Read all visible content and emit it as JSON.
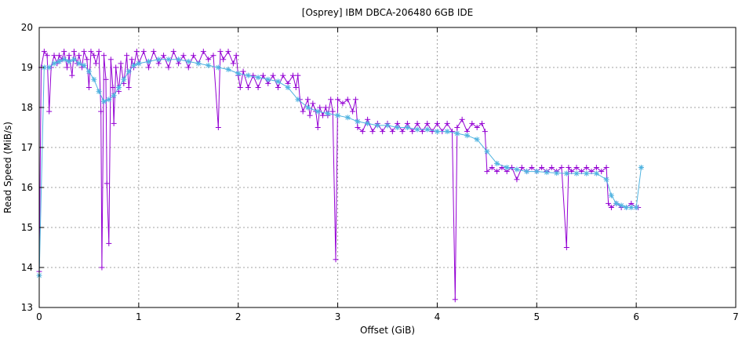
{
  "chart_data": {
    "type": "line",
    "title": "[Osprey] IBM DBCA-206480 6GB IDE",
    "xlabel": "Offset (GiB)",
    "ylabel": "Read Speed (MiB/s)",
    "xlim": [
      0,
      7
    ],
    "ylim": [
      13,
      20
    ],
    "xticks": [
      0,
      1,
      2,
      3,
      4,
      5,
      6,
      7
    ],
    "yticks": [
      13,
      14,
      15,
      16,
      17,
      18,
      19,
      20
    ],
    "grid": true,
    "legend": "none",
    "colors": {
      "raw": "#9400d3",
      "smooth": "#4fb3e0"
    },
    "series": [
      {
        "style": "line+plus",
        "points": [
          [
            0.0,
            13.9
          ],
          [
            0.02,
            19.0
          ],
          [
            0.05,
            19.4
          ],
          [
            0.08,
            19.3
          ],
          [
            0.1,
            17.9
          ],
          [
            0.12,
            19.0
          ],
          [
            0.15,
            19.3
          ],
          [
            0.18,
            19.1
          ],
          [
            0.2,
            19.3
          ],
          [
            0.23,
            19.2
          ],
          [
            0.25,
            19.4
          ],
          [
            0.28,
            19.0
          ],
          [
            0.3,
            19.3
          ],
          [
            0.33,
            18.8
          ],
          [
            0.35,
            19.4
          ],
          [
            0.38,
            19.1
          ],
          [
            0.4,
            19.3
          ],
          [
            0.43,
            19.0
          ],
          [
            0.45,
            19.4
          ],
          [
            0.48,
            19.2
          ],
          [
            0.5,
            18.5
          ],
          [
            0.52,
            19.4
          ],
          [
            0.55,
            19.3
          ],
          [
            0.57,
            19.1
          ],
          [
            0.6,
            19.4
          ],
          [
            0.62,
            17.9
          ],
          [
            0.63,
            14.0
          ],
          [
            0.65,
            19.3
          ],
          [
            0.67,
            18.7
          ],
          [
            0.68,
            16.1
          ],
          [
            0.7,
            14.6
          ],
          [
            0.72,
            19.2
          ],
          [
            0.74,
            18.5
          ],
          [
            0.75,
            17.6
          ],
          [
            0.77,
            19.0
          ],
          [
            0.8,
            18.4
          ],
          [
            0.82,
            19.1
          ],
          [
            0.85,
            18.6
          ],
          [
            0.88,
            19.3
          ],
          [
            0.9,
            18.5
          ],
          [
            0.93,
            19.2
          ],
          [
            0.95,
            19.0
          ],
          [
            0.98,
            19.4
          ],
          [
            1.0,
            19.1
          ],
          [
            1.05,
            19.4
          ],
          [
            1.1,
            19.0
          ],
          [
            1.15,
            19.4
          ],
          [
            1.2,
            19.1
          ],
          [
            1.25,
            19.3
          ],
          [
            1.3,
            19.0
          ],
          [
            1.35,
            19.4
          ],
          [
            1.4,
            19.1
          ],
          [
            1.45,
            19.3
          ],
          [
            1.5,
            19.0
          ],
          [
            1.55,
            19.3
          ],
          [
            1.6,
            19.1
          ],
          [
            1.65,
            19.4
          ],
          [
            1.7,
            19.2
          ],
          [
            1.75,
            19.3
          ],
          [
            1.8,
            17.5
          ],
          [
            1.82,
            19.4
          ],
          [
            1.85,
            19.2
          ],
          [
            1.9,
            19.4
          ],
          [
            1.95,
            19.1
          ],
          [
            1.98,
            19.3
          ],
          [
            2.0,
            18.8
          ],
          [
            2.02,
            18.5
          ],
          [
            2.05,
            18.9
          ],
          [
            2.1,
            18.5
          ],
          [
            2.15,
            18.8
          ],
          [
            2.2,
            18.5
          ],
          [
            2.25,
            18.8
          ],
          [
            2.3,
            18.6
          ],
          [
            2.35,
            18.8
          ],
          [
            2.4,
            18.5
          ],
          [
            2.45,
            18.8
          ],
          [
            2.5,
            18.6
          ],
          [
            2.55,
            18.8
          ],
          [
            2.58,
            18.5
          ],
          [
            2.6,
            18.8
          ],
          [
            2.62,
            18.2
          ],
          [
            2.65,
            17.9
          ],
          [
            2.7,
            18.2
          ],
          [
            2.72,
            17.8
          ],
          [
            2.75,
            18.1
          ],
          [
            2.78,
            17.9
          ],
          [
            2.8,
            17.5
          ],
          [
            2.82,
            18.0
          ],
          [
            2.85,
            17.8
          ],
          [
            2.88,
            18.0
          ],
          [
            2.9,
            17.8
          ],
          [
            2.93,
            18.2
          ],
          [
            2.95,
            17.9
          ],
          [
            2.98,
            14.2
          ],
          [
            3.0,
            18.2
          ],
          [
            3.05,
            18.1
          ],
          [
            3.1,
            18.2
          ],
          [
            3.15,
            17.9
          ],
          [
            3.18,
            18.2
          ],
          [
            3.2,
            17.5
          ],
          [
            3.25,
            17.4
          ],
          [
            3.3,
            17.7
          ],
          [
            3.35,
            17.4
          ],
          [
            3.4,
            17.6
          ],
          [
            3.45,
            17.4
          ],
          [
            3.5,
            17.6
          ],
          [
            3.55,
            17.4
          ],
          [
            3.6,
            17.6
          ],
          [
            3.65,
            17.4
          ],
          [
            3.7,
            17.6
          ],
          [
            3.75,
            17.4
          ],
          [
            3.8,
            17.6
          ],
          [
            3.85,
            17.4
          ],
          [
            3.9,
            17.6
          ],
          [
            3.95,
            17.4
          ],
          [
            4.0,
            17.6
          ],
          [
            4.05,
            17.4
          ],
          [
            4.1,
            17.6
          ],
          [
            4.15,
            17.4
          ],
          [
            4.18,
            13.2
          ],
          [
            4.2,
            17.5
          ],
          [
            4.25,
            17.7
          ],
          [
            4.3,
            17.4
          ],
          [
            4.35,
            17.6
          ],
          [
            4.4,
            17.5
          ],
          [
            4.45,
            17.6
          ],
          [
            4.48,
            17.4
          ],
          [
            4.5,
            16.4
          ],
          [
            4.55,
            16.5
          ],
          [
            4.6,
            16.4
          ],
          [
            4.65,
            16.5
          ],
          [
            4.7,
            16.4
          ],
          [
            4.75,
            16.5
          ],
          [
            4.8,
            16.2
          ],
          [
            4.85,
            16.5
          ],
          [
            4.9,
            16.4
          ],
          [
            4.95,
            16.5
          ],
          [
            5.0,
            16.4
          ],
          [
            5.05,
            16.5
          ],
          [
            5.1,
            16.4
          ],
          [
            5.15,
            16.5
          ],
          [
            5.2,
            16.4
          ],
          [
            5.25,
            16.5
          ],
          [
            5.3,
            14.5
          ],
          [
            5.32,
            16.5
          ],
          [
            5.35,
            16.4
          ],
          [
            5.4,
            16.5
          ],
          [
            5.45,
            16.4
          ],
          [
            5.5,
            16.5
          ],
          [
            5.55,
            16.4
          ],
          [
            5.6,
            16.5
          ],
          [
            5.65,
            16.4
          ],
          [
            5.7,
            16.5
          ],
          [
            5.72,
            15.6
          ],
          [
            5.75,
            15.5
          ],
          [
            5.8,
            15.6
          ],
          [
            5.85,
            15.5
          ],
          [
            5.9,
            15.5
          ],
          [
            5.95,
            15.6
          ],
          [
            6.0,
            15.5
          ],
          [
            6.02,
            15.5
          ]
        ]
      },
      {
        "style": "line+star",
        "points": [
          [
            0.0,
            13.8
          ],
          [
            0.05,
            19.0
          ],
          [
            0.1,
            19.0
          ],
          [
            0.15,
            19.1
          ],
          [
            0.2,
            19.15
          ],
          [
            0.25,
            19.2
          ],
          [
            0.3,
            19.15
          ],
          [
            0.35,
            19.2
          ],
          [
            0.4,
            19.1
          ],
          [
            0.45,
            19.05
          ],
          [
            0.5,
            18.9
          ],
          [
            0.55,
            18.7
          ],
          [
            0.6,
            18.4
          ],
          [
            0.65,
            18.15
          ],
          [
            0.7,
            18.2
          ],
          [
            0.75,
            18.3
          ],
          [
            0.8,
            18.5
          ],
          [
            0.85,
            18.7
          ],
          [
            0.9,
            18.9
          ],
          [
            0.95,
            19.05
          ],
          [
            1.0,
            19.1
          ],
          [
            1.1,
            19.15
          ],
          [
            1.2,
            19.2
          ],
          [
            1.3,
            19.2
          ],
          [
            1.4,
            19.2
          ],
          [
            1.5,
            19.15
          ],
          [
            1.6,
            19.1
          ],
          [
            1.7,
            19.05
          ],
          [
            1.8,
            19.0
          ],
          [
            1.9,
            18.95
          ],
          [
            2.0,
            18.85
          ],
          [
            2.1,
            18.8
          ],
          [
            2.2,
            18.75
          ],
          [
            2.3,
            18.7
          ],
          [
            2.4,
            18.65
          ],
          [
            2.5,
            18.5
          ],
          [
            2.6,
            18.2
          ],
          [
            2.7,
            18.0
          ],
          [
            2.8,
            17.9
          ],
          [
            2.9,
            17.85
          ],
          [
            3.0,
            17.8
          ],
          [
            3.1,
            17.75
          ],
          [
            3.2,
            17.65
          ],
          [
            3.3,
            17.6
          ],
          [
            3.4,
            17.55
          ],
          [
            3.5,
            17.55
          ],
          [
            3.6,
            17.5
          ],
          [
            3.7,
            17.5
          ],
          [
            3.8,
            17.45
          ],
          [
            3.9,
            17.45
          ],
          [
            4.0,
            17.4
          ],
          [
            4.1,
            17.4
          ],
          [
            4.2,
            17.35
          ],
          [
            4.3,
            17.3
          ],
          [
            4.4,
            17.2
          ],
          [
            4.5,
            16.9
          ],
          [
            4.6,
            16.6
          ],
          [
            4.7,
            16.5
          ],
          [
            4.8,
            16.45
          ],
          [
            4.9,
            16.4
          ],
          [
            5.0,
            16.4
          ],
          [
            5.1,
            16.38
          ],
          [
            5.2,
            16.36
          ],
          [
            5.3,
            16.35
          ],
          [
            5.4,
            16.35
          ],
          [
            5.5,
            16.35
          ],
          [
            5.6,
            16.35
          ],
          [
            5.7,
            16.2
          ],
          [
            5.75,
            15.8
          ],
          [
            5.8,
            15.6
          ],
          [
            5.85,
            15.55
          ],
          [
            5.9,
            15.5
          ],
          [
            5.95,
            15.5
          ],
          [
            6.0,
            15.5
          ],
          [
            6.05,
            16.5
          ]
        ]
      }
    ]
  }
}
